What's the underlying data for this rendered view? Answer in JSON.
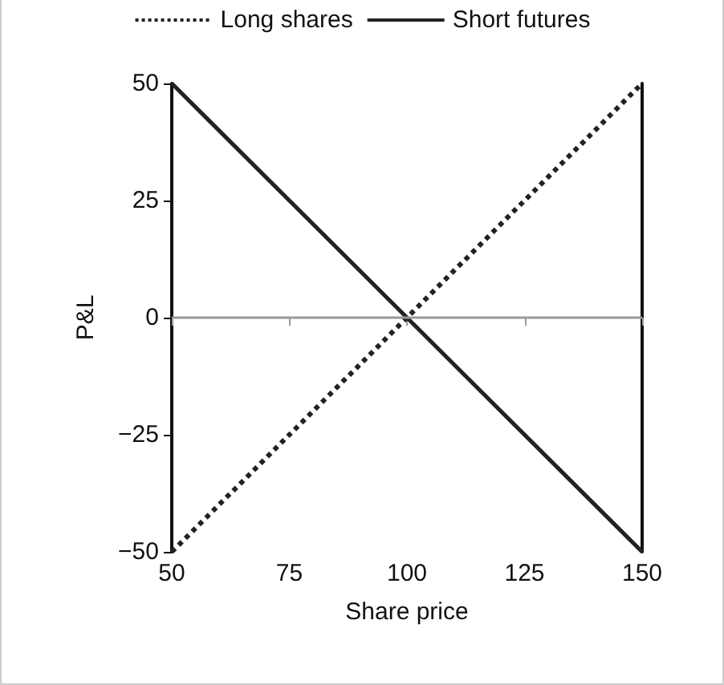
{
  "chart_data": {
    "type": "line",
    "xlabel": "Share price",
    "ylabel": "P&L",
    "x": [
      50,
      150
    ],
    "series": [
      {
        "name": "Long shares",
        "color": "#222222",
        "values": [
          -50,
          50
        ],
        "line_style": "dotted"
      },
      {
        "name": "Short futures",
        "color": "#222222",
        "values": [
          50,
          -50
        ],
        "line_style": "solid"
      }
    ],
    "xlim": [
      50,
      150
    ],
    "xticks": [
      50,
      75,
      100,
      125,
      150
    ],
    "ylim": [
      -50,
      50
    ],
    "yticks": [
      {
        "value": -50,
        "label": "−50"
      },
      {
        "value": -25,
        "label": "−25"
      },
      0,
      25,
      50
    ],
    "ref_lines": [
      {
        "axis": "y",
        "value": 0,
        "color": "#999999"
      }
    ],
    "grid": false,
    "legend": "top",
    "marker": "none"
  }
}
